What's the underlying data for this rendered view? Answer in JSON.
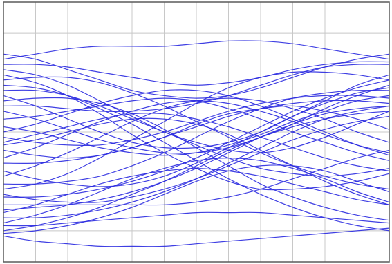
{
  "chart_data": {
    "type": "line",
    "title": "",
    "xlabel": "",
    "ylabel": "",
    "xlim": [
      0,
      12
    ],
    "ylim": [
      0,
      1
    ],
    "grid": true,
    "grid_color": "#c8c8c8",
    "border_color": "#5a5a5a",
    "line_color": "#2a2ae0",
    "x": [
      0,
      1,
      2,
      3,
      4,
      5,
      6,
      7,
      8,
      9,
      10,
      11,
      12
    ],
    "series": [
      {
        "values": [
          0.78,
          0.8,
          0.82,
          0.83,
          0.83,
          0.83,
          0.84,
          0.85,
          0.85,
          0.84,
          0.82,
          0.8,
          0.78
        ]
      },
      {
        "values": [
          0.8,
          0.78,
          0.74,
          0.7,
          0.66,
          0.64,
          0.63,
          0.64,
          0.67,
          0.71,
          0.75,
          0.78,
          0.8
        ]
      },
      {
        "values": [
          0.76,
          0.76,
          0.75,
          0.73,
          0.71,
          0.69,
          0.68,
          0.69,
          0.71,
          0.74,
          0.76,
          0.77,
          0.77
        ]
      },
      {
        "values": [
          0.74,
          0.72,
          0.68,
          0.62,
          0.56,
          0.5,
          0.46,
          0.43,
          0.42,
          0.44,
          0.48,
          0.53,
          0.58
        ]
      },
      {
        "values": [
          0.7,
          0.71,
          0.71,
          0.69,
          0.65,
          0.6,
          0.54,
          0.48,
          0.42,
          0.37,
          0.33,
          0.3,
          0.28
        ]
      },
      {
        "values": [
          0.72,
          0.69,
          0.64,
          0.57,
          0.49,
          0.42,
          0.36,
          0.31,
          0.28,
          0.28,
          0.29,
          0.31,
          0.34
        ]
      },
      {
        "values": [
          0.66,
          0.66,
          0.64,
          0.6,
          0.55,
          0.5,
          0.45,
          0.4,
          0.36,
          0.34,
          0.33,
          0.34,
          0.36
        ]
      },
      {
        "values": [
          0.64,
          0.6,
          0.55,
          0.5,
          0.46,
          0.44,
          0.44,
          0.46,
          0.5,
          0.56,
          0.62,
          0.68,
          0.72
        ]
      },
      {
        "values": [
          0.6,
          0.6,
          0.59,
          0.58,
          0.58,
          0.59,
          0.61,
          0.64,
          0.68,
          0.72,
          0.75,
          0.76,
          0.76
        ]
      },
      {
        "values": [
          0.58,
          0.55,
          0.51,
          0.47,
          0.44,
          0.42,
          0.42,
          0.44,
          0.48,
          0.53,
          0.59,
          0.64,
          0.68
        ]
      },
      {
        "values": [
          0.55,
          0.56,
          0.58,
          0.6,
          0.62,
          0.63,
          0.62,
          0.59,
          0.55,
          0.5,
          0.46,
          0.42,
          0.39
        ]
      },
      {
        "values": [
          0.52,
          0.5,
          0.47,
          0.44,
          0.42,
          0.41,
          0.42,
          0.45,
          0.49,
          0.54,
          0.58,
          0.62,
          0.64
        ]
      },
      {
        "values": [
          0.5,
          0.53,
          0.57,
          0.61,
          0.64,
          0.66,
          0.66,
          0.64,
          0.6,
          0.55,
          0.5,
          0.45,
          0.41
        ]
      },
      {
        "values": [
          0.48,
          0.46,
          0.45,
          0.45,
          0.47,
          0.5,
          0.54,
          0.58,
          0.61,
          0.63,
          0.64,
          0.64,
          0.63
        ]
      },
      {
        "values": [
          0.46,
          0.49,
          0.52,
          0.55,
          0.57,
          0.57,
          0.55,
          0.52,
          0.48,
          0.44,
          0.4,
          0.37,
          0.35
        ]
      },
      {
        "values": [
          0.43,
          0.41,
          0.4,
          0.41,
          0.44,
          0.48,
          0.53,
          0.57,
          0.59,
          0.6,
          0.58,
          0.55,
          0.51
        ]
      },
      {
        "values": [
          0.4,
          0.44,
          0.49,
          0.54,
          0.58,
          0.61,
          0.62,
          0.61,
          0.58,
          0.54,
          0.49,
          0.45,
          0.42
        ]
      },
      {
        "values": [
          0.38,
          0.38,
          0.39,
          0.41,
          0.44,
          0.48,
          0.52,
          0.56,
          0.59,
          0.61,
          0.62,
          0.62,
          0.61
        ]
      },
      {
        "values": [
          0.35,
          0.32,
          0.3,
          0.29,
          0.3,
          0.33,
          0.38,
          0.44,
          0.5,
          0.56,
          0.61,
          0.65,
          0.67
        ]
      },
      {
        "values": [
          0.33,
          0.37,
          0.42,
          0.48,
          0.54,
          0.59,
          0.62,
          0.63,
          0.62,
          0.59,
          0.55,
          0.5,
          0.46
        ]
      },
      {
        "values": [
          0.3,
          0.3,
          0.31,
          0.33,
          0.37,
          0.42,
          0.48,
          0.54,
          0.59,
          0.63,
          0.65,
          0.66,
          0.66
        ]
      },
      {
        "values": [
          0.28,
          0.3,
          0.34,
          0.4,
          0.47,
          0.54,
          0.61,
          0.67,
          0.71,
          0.73,
          0.73,
          0.72,
          0.7
        ]
      },
      {
        "values": [
          0.26,
          0.24,
          0.23,
          0.23,
          0.25,
          0.28,
          0.32,
          0.37,
          0.42,
          0.47,
          0.51,
          0.54,
          0.56
        ]
      },
      {
        "values": [
          0.25,
          0.25,
          0.26,
          0.28,
          0.31,
          0.35,
          0.4,
          0.46,
          0.52,
          0.58,
          0.63,
          0.67,
          0.7
        ]
      },
      {
        "values": [
          0.22,
          0.22,
          0.22,
          0.22,
          0.22,
          0.22,
          0.23,
          0.25,
          0.28,
          0.32,
          0.36,
          0.4,
          0.43
        ]
      },
      {
        "values": [
          0.2,
          0.21,
          0.22,
          0.24,
          0.27,
          0.31,
          0.36,
          0.42,
          0.48,
          0.53,
          0.57,
          0.59,
          0.6
        ]
      },
      {
        "values": [
          0.19,
          0.22,
          0.26,
          0.3,
          0.33,
          0.35,
          0.36,
          0.35,
          0.33,
          0.3,
          0.27,
          0.24,
          0.22
        ]
      },
      {
        "values": [
          0.17,
          0.17,
          0.18,
          0.2,
          0.23,
          0.27,
          0.32,
          0.38,
          0.44,
          0.5,
          0.55,
          0.58,
          0.6
        ]
      },
      {
        "values": [
          0.15,
          0.18,
          0.22,
          0.27,
          0.32,
          0.36,
          0.39,
          0.4,
          0.39,
          0.36,
          0.32,
          0.27,
          0.23
        ]
      },
      {
        "values": [
          0.14,
          0.14,
          0.15,
          0.16,
          0.17,
          0.18,
          0.19,
          0.19,
          0.19,
          0.18,
          0.17,
          0.16,
          0.15
        ]
      },
      {
        "values": [
          0.12,
          0.14,
          0.17,
          0.21,
          0.26,
          0.31,
          0.37,
          0.43,
          0.48,
          0.52,
          0.55,
          0.57,
          0.58
        ]
      },
      {
        "values": [
          0.1,
          0.08,
          0.07,
          0.06,
          0.06,
          0.06,
          0.07,
          0.08,
          0.09,
          0.1,
          0.11,
          0.12,
          0.13
        ]
      },
      {
        "values": [
          0.11,
          0.12,
          0.14,
          0.17,
          0.21,
          0.26,
          0.31,
          0.35,
          0.37,
          0.37,
          0.35,
          0.31,
          0.27
        ]
      },
      {
        "values": [
          0.62,
          0.63,
          0.63,
          0.61,
          0.57,
          0.51,
          0.44,
          0.37,
          0.3,
          0.25,
          0.21,
          0.18,
          0.16
        ]
      },
      {
        "values": [
          0.68,
          0.67,
          0.64,
          0.59,
          0.53,
          0.46,
          0.39,
          0.32,
          0.26,
          0.21,
          0.17,
          0.14,
          0.12
        ]
      },
      {
        "values": [
          0.45,
          0.47,
          0.5,
          0.53,
          0.55,
          0.55,
          0.53,
          0.49,
          0.43,
          0.37,
          0.31,
          0.26,
          0.22
        ]
      }
    ]
  }
}
